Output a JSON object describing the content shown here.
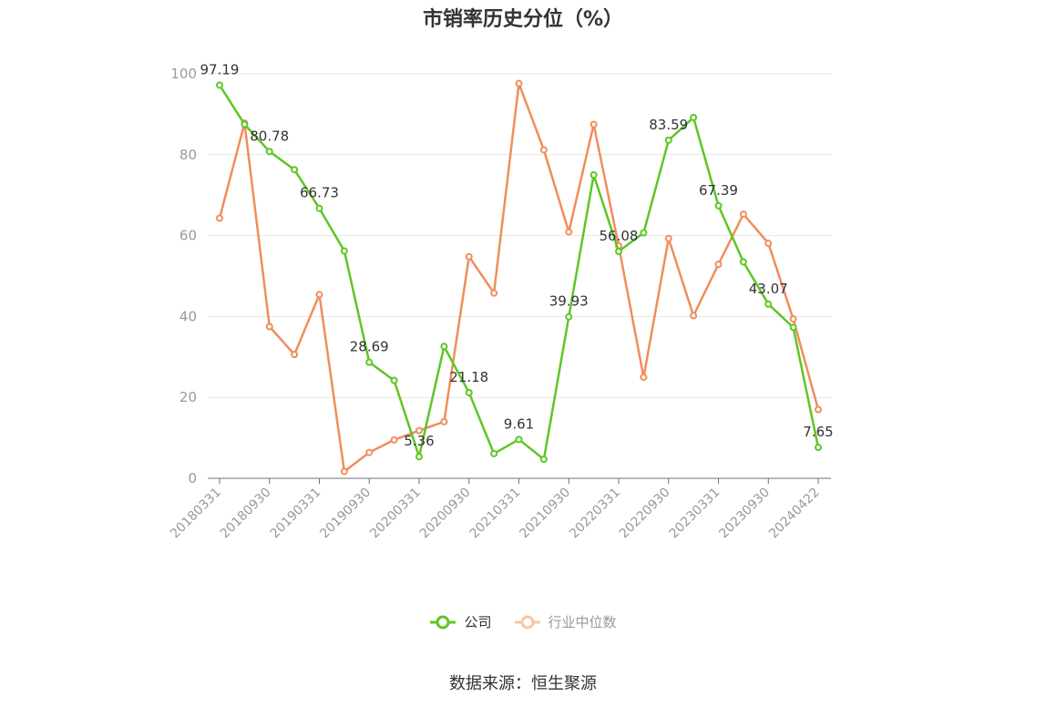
{
  "chart_data": {
    "type": "line",
    "title": "市销率历史分位（%）",
    "x": [
      "20180331",
      "20180630",
      "20180930",
      "20181231",
      "20190331",
      "20190630",
      "20190930",
      "20191231",
      "20200331",
      "20200630",
      "20200930",
      "20201231",
      "20210331",
      "20210630",
      "20210930",
      "20211231",
      "20220331",
      "20220630",
      "20220930",
      "20221231",
      "20230331",
      "20230630",
      "20230930",
      "20231231",
      "20240422"
    ],
    "x_tick_labels": [
      "20180331",
      "20180930",
      "20190331",
      "20190930",
      "20200331",
      "20200930",
      "20210331",
      "20210930",
      "20220331",
      "20220930",
      "20230331",
      "20230930",
      "20240422"
    ],
    "ylim": [
      0,
      100
    ],
    "y_ticks": [
      0,
      20,
      40,
      60,
      80,
      100
    ],
    "grid": true,
    "legend_position": "bottom",
    "series": [
      {
        "name": "公司",
        "color": "#5ec624",
        "values": [
          97.19,
          87.5,
          80.78,
          76.3,
          66.73,
          56.2,
          28.69,
          24.2,
          5.36,
          32.6,
          21.18,
          6.1,
          9.61,
          4.7,
          39.93,
          75.0,
          56.08,
          60.7,
          83.59,
          89.2,
          67.39,
          53.5,
          43.07,
          37.3,
          7.65
        ],
        "data_labels": {
          "0": "97.19",
          "2": "80.78",
          "4": "66.73",
          "6": "28.69",
          "8": "5.36",
          "10": "21.18",
          "12": "9.61",
          "14": "39.93",
          "16": "56.08",
          "18": "83.59",
          "20": "67.39",
          "22": "43.07",
          "24": "7.65"
        }
      },
      {
        "name": "行业中位数",
        "color": "#f08d5c",
        "values": [
          64.3,
          87.8,
          37.5,
          30.6,
          45.4,
          1.7,
          6.4,
          9.5,
          11.8,
          14.0,
          54.8,
          45.8,
          97.6,
          81.2,
          60.9,
          87.5,
          57.5,
          25.0,
          59.3,
          40.2,
          52.9,
          65.3,
          58.1,
          39.4,
          17.0
        ]
      }
    ]
  },
  "source": "数据来源：恒生聚源"
}
